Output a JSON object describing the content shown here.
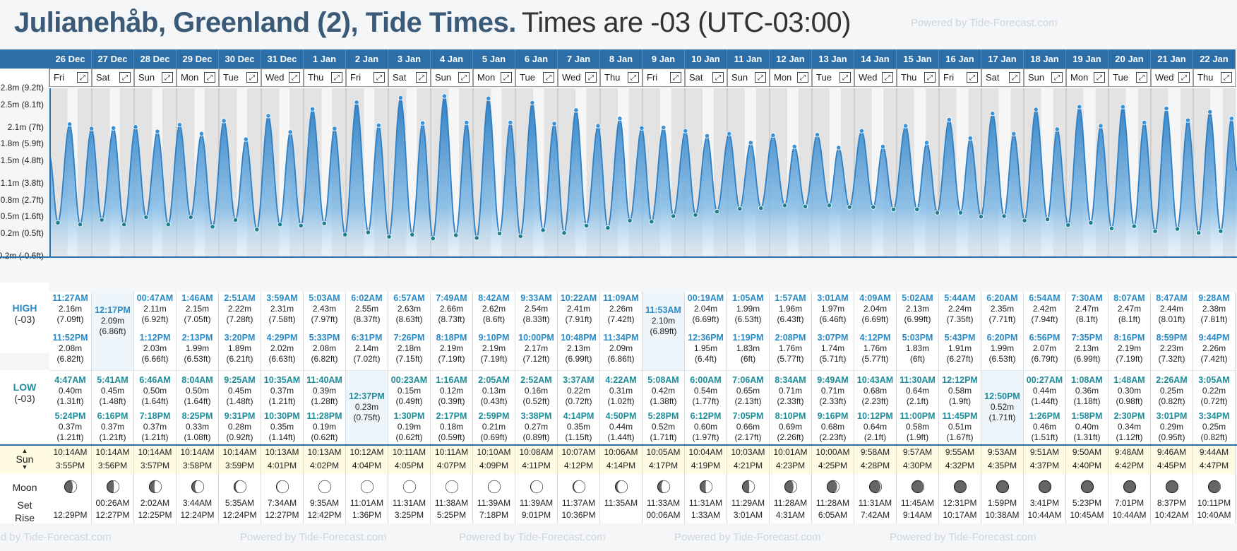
{
  "header": {
    "title": "Julianehåb, Greenland (2), Tide Times.",
    "subtitle": "Times are -03 (UTC-03:00)",
    "powered_by": "Powered by Tide-Forecast.com"
  },
  "labels": {
    "high": "HIGH",
    "high_tz": "(-03)",
    "low": "LOW",
    "low_tz": "(-03)",
    "sun": "Sun",
    "moon": "Moon",
    "set": "Set",
    "rise": "Rise",
    "expand_icon": "expand-icon"
  },
  "colors": {
    "header_blue": "#2c6fa8",
    "high_time": "#2a8bc7",
    "low_time": "#1f8c9a",
    "tide_fill": "#3d8fd0",
    "sun_bg": "#fffbe3"
  },
  "chart_data": {
    "type": "area",
    "y_tick_labels": [
      "2.8m (9.2ft)",
      "2.5m (8.1ft)",
      "2.1m (7ft)",
      "1.8m (5.9ft)",
      "1.5m (4.8ft)",
      "1.1m (3.8ft)",
      "0.8m (2.7ft)",
      "0.5m (1.6ft)",
      "0.2m (0.5ft)",
      "-0.2m (-0.6ft)"
    ],
    "ylim": [
      -0.2,
      2.8
    ],
    "start_height": 1.6
  },
  "days": [
    {
      "date": "26 Dec",
      "wd": "Fri",
      "high": [
        {
          "t": "11:27AM",
          "m": "2.16m",
          "f": "(7.09ft)"
        },
        {
          "t": "11:52PM",
          "m": "2.08m",
          "f": "(6.82ft)"
        }
      ],
      "low": [
        {
          "t": "4:47AM",
          "m": "0.40m",
          "f": "(1.31ft)"
        },
        {
          "t": "5:24PM",
          "m": "0.37m",
          "f": "(1.21ft)"
        }
      ],
      "sun_rise": "10:14AM",
      "sun_set": "3:55PM",
      "moon_set": "",
      "moon_rise": "12:29PM",
      "phase": 0.38
    },
    {
      "date": "27 Dec",
      "wd": "Sat",
      "high": [
        {
          "t": "12:17PM",
          "m": "2.09m",
          "f": "(6.86ft)"
        }
      ],
      "low": [
        {
          "t": "5:41AM",
          "m": "0.45m",
          "f": "(1.48ft)"
        },
        {
          "t": "6:16PM",
          "m": "0.37m",
          "f": "(1.21ft)"
        }
      ],
      "sun_rise": "10:14AM",
      "sun_set": "3:56PM",
      "moon_set": "00:26AM",
      "moon_rise": "12:27PM",
      "phase": 0.45
    },
    {
      "date": "28 Dec",
      "wd": "Sun",
      "high": [
        {
          "t": "00:47AM",
          "m": "2.11m",
          "f": "(6.92ft)"
        },
        {
          "t": "1:12PM",
          "m": "2.03m",
          "f": "(6.66ft)"
        }
      ],
      "low": [
        {
          "t": "6:46AM",
          "m": "0.50m",
          "f": "(1.64ft)"
        },
        {
          "t": "7:18PM",
          "m": "0.37m",
          "f": "(1.21ft)"
        }
      ],
      "sun_rise": "10:14AM",
      "sun_set": "3:57PM",
      "moon_set": "2:02AM",
      "moon_rise": "12:25PM",
      "phase": 0.55
    },
    {
      "date": "29 Dec",
      "wd": "Mon",
      "high": [
        {
          "t": "1:46AM",
          "m": "2.15m",
          "f": "(7.05ft)"
        },
        {
          "t": "2:13PM",
          "m": "1.99m",
          "f": "(6.53ft)"
        }
      ],
      "low": [
        {
          "t": "8:04AM",
          "m": "0.50m",
          "f": "(1.64ft)"
        },
        {
          "t": "8:25PM",
          "m": "0.33m",
          "f": "(1.08ft)"
        }
      ],
      "sun_rise": "10:14AM",
      "sun_set": "3:58PM",
      "moon_set": "3:44AM",
      "moon_rise": "12:24PM",
      "phase": 0.65
    },
    {
      "date": "30 Dec",
      "wd": "Tue",
      "high": [
        {
          "t": "2:51AM",
          "m": "2.22m",
          "f": "(7.28ft)"
        },
        {
          "t": "3:20PM",
          "m": "1.89m",
          "f": "(6.21ft)"
        }
      ],
      "low": [
        {
          "t": "9:25AM",
          "m": "0.45m",
          "f": "(1.48ft)"
        },
        {
          "t": "9:31PM",
          "m": "0.28m",
          "f": "(0.92ft)"
        }
      ],
      "sun_rise": "10:14AM",
      "sun_set": "3:59PM",
      "moon_set": "5:35AM",
      "moon_rise": "12:24PM",
      "phase": 0.75
    },
    {
      "date": "31 Dec",
      "wd": "Wed",
      "high": [
        {
          "t": "3:59AM",
          "m": "2.31m",
          "f": "(7.58ft)"
        },
        {
          "t": "4:29PM",
          "m": "2.02m",
          "f": "(6.63ft)"
        }
      ],
      "low": [
        {
          "t": "10:35AM",
          "m": "0.37m",
          "f": "(1.21ft)"
        },
        {
          "t": "10:30PM",
          "m": "0.35m",
          "f": "(1.14ft)"
        }
      ],
      "sun_rise": "10:13AM",
      "sun_set": "4:01PM",
      "moon_set": "7:34AM",
      "moon_rise": "12:27PM",
      "phase": 0.85
    },
    {
      "date": "1 Jan",
      "wd": "Thu",
      "high": [
        {
          "t": "5:03AM",
          "m": "2.43m",
          "f": "(7.97ft)"
        },
        {
          "t": "5:33PM",
          "m": "2.08m",
          "f": "(6.82ft)"
        }
      ],
      "low": [
        {
          "t": "11:40AM",
          "m": "0.39m",
          "f": "(1.28ft)"
        },
        {
          "t": "11:28PM",
          "m": "0.19m",
          "f": "(0.62ft)"
        }
      ],
      "sun_rise": "10:13AM",
      "sun_set": "4:02PM",
      "moon_set": "9:35AM",
      "moon_rise": "12:42PM",
      "phase": 0.95
    },
    {
      "date": "2 Jan",
      "wd": "Fri",
      "high": [
        {
          "t": "6:02AM",
          "m": "2.55m",
          "f": "(8.37ft)"
        },
        {
          "t": "6:31PM",
          "m": "2.14m",
          "f": "(7.02ft)"
        }
      ],
      "low": [
        {
          "t": "12:37PM",
          "m": "0.23m",
          "f": "(0.75ft)"
        }
      ],
      "sun_rise": "10:12AM",
      "sun_set": "4:04PM",
      "moon_set": "11:01AM",
      "moon_rise": "1:36PM",
      "phase": 1.0
    },
    {
      "date": "3 Jan",
      "wd": "Sat",
      "high": [
        {
          "t": "6:57AM",
          "m": "2.63m",
          "f": "(8.63ft)"
        },
        {
          "t": "7:26PM",
          "m": "2.18m",
          "f": "(7.15ft)"
        }
      ],
      "low": [
        {
          "t": "00:23AM",
          "m": "0.15m",
          "f": "(0.49ft)"
        },
        {
          "t": "1:30PM",
          "m": "0.19m",
          "f": "(0.62ft)"
        }
      ],
      "sun_rise": "10:11AM",
      "sun_set": "4:05PM",
      "moon_set": "11:31AM",
      "moon_rise": "3:25PM",
      "phase": 1.0
    },
    {
      "date": "4 Jan",
      "wd": "Sun",
      "high": [
        {
          "t": "7:49AM",
          "m": "2.66m",
          "f": "(8.73ft)"
        },
        {
          "t": "8:18PM",
          "m": "2.19m",
          "f": "(7.19ft)"
        }
      ],
      "low": [
        {
          "t": "1:16AM",
          "m": "0.12m",
          "f": "(0.39ft)"
        },
        {
          "t": "2:17PM",
          "m": "0.18m",
          "f": "(0.59ft)"
        }
      ],
      "sun_rise": "10:11AM",
      "sun_set": "4:07PM",
      "moon_set": "11:38AM",
      "moon_rise": "5:25PM",
      "phase": 0.97
    },
    {
      "date": "5 Jan",
      "wd": "Mon",
      "high": [
        {
          "t": "8:42AM",
          "m": "2.62m",
          "f": "(8.6ft)"
        },
        {
          "t": "9:10PM",
          "m": "2.19m",
          "f": "(7.19ft)"
        }
      ],
      "low": [
        {
          "t": "2:05AM",
          "m": "0.13m",
          "f": "(0.43ft)"
        },
        {
          "t": "2:59PM",
          "m": "0.21m",
          "f": "(0.69ft)"
        }
      ],
      "sun_rise": "10:10AM",
      "sun_set": "4:09PM",
      "moon_set": "11:39AM",
      "moon_rise": "7:18PM",
      "phase": 0.93
    },
    {
      "date": "6 Jan",
      "wd": "Tue",
      "high": [
        {
          "t": "9:33AM",
          "m": "2.54m",
          "f": "(8.33ft)"
        },
        {
          "t": "10:00PM",
          "m": "2.17m",
          "f": "(7.12ft)"
        }
      ],
      "low": [
        {
          "t": "2:52AM",
          "m": "0.16m",
          "f": "(0.52ft)"
        },
        {
          "t": "3:38PM",
          "m": "0.27m",
          "f": "(0.89ft)"
        }
      ],
      "sun_rise": "10:08AM",
      "sun_set": "4:11PM",
      "moon_set": "11:39AM",
      "moon_rise": "9:01PM",
      "phase": 0.88
    },
    {
      "date": "7 Jan",
      "wd": "Wed",
      "high": [
        {
          "t": "10:22AM",
          "m": "2.41m",
          "f": "(7.91ft)"
        },
        {
          "t": "10:48PM",
          "m": "2.13m",
          "f": "(6.99ft)"
        }
      ],
      "low": [
        {
          "t": "3:37AM",
          "m": "0.22m",
          "f": "(0.72ft)"
        },
        {
          "t": "4:14PM",
          "m": "0.35m",
          "f": "(1.15ft)"
        }
      ],
      "sun_rise": "10:07AM",
      "sun_set": "4:12PM",
      "moon_set": "11:37AM",
      "moon_rise": "10:36PM",
      "phase": 0.8
    },
    {
      "date": "8 Jan",
      "wd": "Thu",
      "high": [
        {
          "t": "11:09AM",
          "m": "2.26m",
          "f": "(7.42ft)"
        },
        {
          "t": "11:34PM",
          "m": "2.09m",
          "f": "(6.86ft)"
        }
      ],
      "low": [
        {
          "t": "4:22AM",
          "m": "0.31m",
          "f": "(1.02ft)"
        },
        {
          "t": "4:50PM",
          "m": "0.44m",
          "f": "(1.44ft)"
        }
      ],
      "sun_rise": "10:06AM",
      "sun_set": "4:14PM",
      "moon_set": "11:35AM",
      "moon_rise": "",
      "phase": 0.72
    },
    {
      "date": "9 Jan",
      "wd": "Fri",
      "high": [
        {
          "t": "11:53AM",
          "m": "2.10m",
          "f": "(6.89ft)"
        }
      ],
      "low": [
        {
          "t": "5:08AM",
          "m": "0.42m",
          "f": "(1.38ft)"
        },
        {
          "t": "5:28PM",
          "m": "0.52m",
          "f": "(1.71ft)"
        }
      ],
      "sun_rise": "10:05AM",
      "sun_set": "4:17PM",
      "moon_set": "11:33AM",
      "moon_rise": "00:06AM",
      "phase": 0.62
    },
    {
      "date": "10 Jan",
      "wd": "Sat",
      "high": [
        {
          "t": "00:19AM",
          "m": "2.04m",
          "f": "(6.69ft)"
        },
        {
          "t": "12:36PM",
          "m": "1.95m",
          "f": "(6.4ft)"
        }
      ],
      "low": [
        {
          "t": "6:00AM",
          "m": "0.54m",
          "f": "(1.77ft)"
        },
        {
          "t": "6:12PM",
          "m": "0.60m",
          "f": "(1.97ft)"
        }
      ],
      "sun_rise": "10:04AM",
      "sun_set": "4:19PM",
      "moon_set": "11:31AM",
      "moon_rise": "1:33AM",
      "phase": 0.52
    },
    {
      "date": "11 Jan",
      "wd": "Sun",
      "high": [
        {
          "t": "1:05AM",
          "m": "1.99m",
          "f": "(6.53ft)"
        },
        {
          "t": "1:19PM",
          "m": "1.83m",
          "f": "(6ft)"
        }
      ],
      "low": [
        {
          "t": "7:06AM",
          "m": "0.65m",
          "f": "(2.13ft)"
        },
        {
          "t": "7:05PM",
          "m": "0.66m",
          "f": "(2.17ft)"
        }
      ],
      "sun_rise": "10:03AM",
      "sun_set": "4:21PM",
      "moon_set": "11:29AM",
      "moon_rise": "3:01AM",
      "phase": 0.45
    },
    {
      "date": "12 Jan",
      "wd": "Mon",
      "high": [
        {
          "t": "1:57AM",
          "m": "1.96m",
          "f": "(6.43ft)"
        },
        {
          "t": "2:08PM",
          "m": "1.76m",
          "f": "(5.77ft)"
        }
      ],
      "low": [
        {
          "t": "8:34AM",
          "m": "0.71m",
          "f": "(2.33ft)"
        },
        {
          "t": "8:10PM",
          "m": "0.69m",
          "f": "(2.26ft)"
        }
      ],
      "sun_rise": "10:01AM",
      "sun_set": "4:23PM",
      "moon_set": "11:28AM",
      "moon_rise": "4:31AM",
      "phase": 0.35
    },
    {
      "date": "13 Jan",
      "wd": "Tue",
      "high": [
        {
          "t": "3:01AM",
          "m": "1.97m",
          "f": "(6.46ft)"
        },
        {
          "t": "3:07PM",
          "m": "1.74m",
          "f": "(5.71ft)"
        }
      ],
      "low": [
        {
          "t": "9:49AM",
          "m": "0.71m",
          "f": "(2.33ft)"
        },
        {
          "t": "9:16PM",
          "m": "0.68m",
          "f": "(2.23ft)"
        }
      ],
      "sun_rise": "10:00AM",
      "sun_set": "4:25PM",
      "moon_set": "11:28AM",
      "moon_rise": "6:05AM",
      "phase": 0.27
    },
    {
      "date": "14 Jan",
      "wd": "Wed",
      "high": [
        {
          "t": "4:09AM",
          "m": "2.04m",
          "f": "(6.69ft)"
        },
        {
          "t": "4:12PM",
          "m": "1.76m",
          "f": "(5.77ft)"
        }
      ],
      "low": [
        {
          "t": "10:43AM",
          "m": "0.68m",
          "f": "(2.23ft)"
        },
        {
          "t": "10:12PM",
          "m": "0.64m",
          "f": "(2.1ft)"
        }
      ],
      "sun_rise": "9:58AM",
      "sun_set": "4:28PM",
      "moon_set": "11:31AM",
      "moon_rise": "7:42AM",
      "phase": 0.18
    },
    {
      "date": "15 Jan",
      "wd": "Thu",
      "high": [
        {
          "t": "5:02AM",
          "m": "2.13m",
          "f": "(6.99ft)"
        },
        {
          "t": "5:03PM",
          "m": "1.83m",
          "f": "(6ft)"
        }
      ],
      "low": [
        {
          "t": "11:30AM",
          "m": "0.64m",
          "f": "(2.1ft)"
        },
        {
          "t": "11:00PM",
          "m": "0.58m",
          "f": "(1.9ft)"
        }
      ],
      "sun_rise": "9:57AM",
      "sun_set": "4:30PM",
      "moon_set": "11:45AM",
      "moon_rise": "9:14AM",
      "phase": 0.12
    },
    {
      "date": "16 Jan",
      "wd": "Fri",
      "high": [
        {
          "t": "5:44AM",
          "m": "2.24m",
          "f": "(7.35ft)"
        },
        {
          "t": "5:43PM",
          "m": "1.91m",
          "f": "(6.27ft)"
        }
      ],
      "low": [
        {
          "t": "12:12PM",
          "m": "0.58m",
          "f": "(1.9ft)"
        },
        {
          "t": "11:45PM",
          "m": "0.51m",
          "f": "(1.67ft)"
        }
      ],
      "sun_rise": "9:55AM",
      "sun_set": "4:32PM",
      "moon_set": "12:31PM",
      "moon_rise": "10:17AM",
      "phase": 0.06
    },
    {
      "date": "17 Jan",
      "wd": "Sat",
      "high": [
        {
          "t": "6:20AM",
          "m": "2.35m",
          "f": "(7.71ft)"
        },
        {
          "t": "6:20PM",
          "m": "1.99m",
          "f": "(6.53ft)"
        }
      ],
      "low": [
        {
          "t": "12:50PM",
          "m": "0.52m",
          "f": "(1.71ft)"
        }
      ],
      "sun_rise": "9:53AM",
      "sun_set": "4:35PM",
      "moon_set": "1:59PM",
      "moon_rise": "10:38AM",
      "phase": 0.02
    },
    {
      "date": "18 Jan",
      "wd": "Sun",
      "high": [
        {
          "t": "6:54AM",
          "m": "2.42m",
          "f": "(7.94ft)"
        },
        {
          "t": "6:56PM",
          "m": "2.07m",
          "f": "(6.79ft)"
        }
      ],
      "low": [
        {
          "t": "00:27AM",
          "m": "0.44m",
          "f": "(1.44ft)"
        },
        {
          "t": "1:26PM",
          "m": "0.46m",
          "f": "(1.51ft)"
        }
      ],
      "sun_rise": "9:51AM",
      "sun_set": "4:37PM",
      "moon_set": "3:41PM",
      "moon_rise": "10:44AM",
      "phase": 0.0
    },
    {
      "date": "19 Jan",
      "wd": "Mon",
      "high": [
        {
          "t": "7:30AM",
          "m": "2.47m",
          "f": "(8.1ft)"
        },
        {
          "t": "7:35PM",
          "m": "2.13m",
          "f": "(6.99ft)"
        }
      ],
      "low": [
        {
          "t": "1:08AM",
          "m": "0.36m",
          "f": "(1.18ft)"
        },
        {
          "t": "1:58PM",
          "m": "0.40m",
          "f": "(1.31ft)"
        }
      ],
      "sun_rise": "9:50AM",
      "sun_set": "4:40PM",
      "moon_set": "5:23PM",
      "moon_rise": "10:45AM",
      "phase": 0.0
    },
    {
      "date": "20 Jan",
      "wd": "Tue",
      "high": [
        {
          "t": "8:07AM",
          "m": "2.47m",
          "f": "(8.1ft)"
        },
        {
          "t": "8:16PM",
          "m": "2.19m",
          "f": "(7.19ft)"
        }
      ],
      "low": [
        {
          "t": "1:48AM",
          "m": "0.30m",
          "f": "(0.98ft)"
        },
        {
          "t": "2:30PM",
          "m": "0.34m",
          "f": "(1.12ft)"
        }
      ],
      "sun_rise": "9:48AM",
      "sun_set": "4:42PM",
      "moon_set": "7:01PM",
      "moon_rise": "10:44AM",
      "phase": 0.02
    },
    {
      "date": "21 Jan",
      "wd": "Wed",
      "high": [
        {
          "t": "8:47AM",
          "m": "2.44m",
          "f": "(8.01ft)"
        },
        {
          "t": "8:59PM",
          "m": "2.23m",
          "f": "(7.32ft)"
        }
      ],
      "low": [
        {
          "t": "2:26AM",
          "m": "0.25m",
          "f": "(0.82ft)"
        },
        {
          "t": "3:01PM",
          "m": "0.29m",
          "f": "(0.95ft)"
        }
      ],
      "sun_rise": "9:46AM",
      "sun_set": "4:45PM",
      "moon_set": "8:37PM",
      "moon_rise": "10:42AM",
      "phase": 0.05
    },
    {
      "date": "22 Jan",
      "wd": "Thu",
      "high": [
        {
          "t": "9:28AM",
          "m": "2.38m",
          "f": "(7.81ft)"
        },
        {
          "t": "9:44PM",
          "m": "2.26m",
          "f": "(7.42ft)"
        }
      ],
      "low": [
        {
          "t": "3:05AM",
          "m": "0.22m",
          "f": "(0.72ft)"
        },
        {
          "t": "3:34PM",
          "m": "0.25m",
          "f": "(0.82ft)"
        }
      ],
      "sun_rise": "9:44AM",
      "sun_set": "4:47PM",
      "moon_set": "10:11PM",
      "moon_rise": "10:40AM",
      "phase": 0.1
    }
  ]
}
